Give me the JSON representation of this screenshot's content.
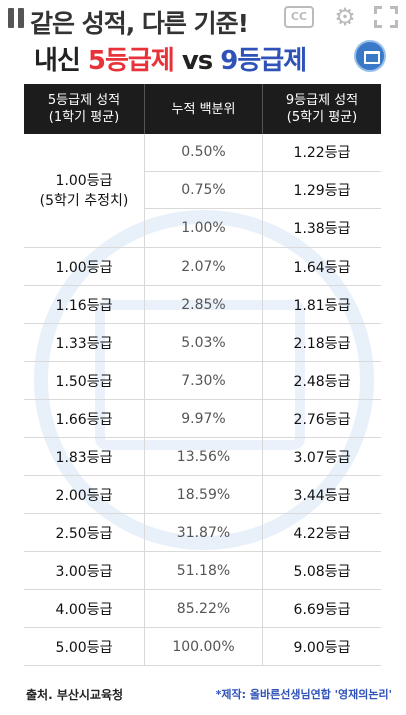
{
  "overlay": {
    "title": "같은 성적, 다른 기준!",
    "cc_label": "CC"
  },
  "headline": {
    "part1": "내신 ",
    "part2": "5등급제",
    "part3": " vs ",
    "part4": "9등급제"
  },
  "table": {
    "headers": [
      "5등급제 성적\n(1학기 평균)",
      "누적 백분위",
      "9등급제 성적\n(5학기 평균)"
    ],
    "group1": {
      "grade5_line1": "1.00등급",
      "grade5_line2": "(5학기 추정치)",
      "rows": [
        {
          "pct": "0.50%",
          "grade9": "1.22등급"
        },
        {
          "pct": "0.75%",
          "grade9": "1.29등급"
        },
        {
          "pct": "1.00%",
          "grade9": "1.38등급"
        }
      ]
    },
    "rows": [
      {
        "grade5": "1.00등급",
        "pct": "2.07%",
        "grade9": "1.64등급"
      },
      {
        "grade5": "1.16등급",
        "pct": "2.85%",
        "grade9": "1.81등급"
      },
      {
        "grade5": "1.33등급",
        "pct": "5.03%",
        "grade9": "2.18등급"
      },
      {
        "grade5": "1.50등급",
        "pct": "7.30%",
        "grade9": "2.48등급"
      },
      {
        "grade5": "1.66등급",
        "pct": "9.97%",
        "grade9": "2.76등급"
      },
      {
        "grade5": "1.83등급",
        "pct": "13.56%",
        "grade9": "3.07등급"
      },
      {
        "grade5": "2.00등급",
        "pct": "18.59%",
        "grade9": "3.44등급"
      },
      {
        "grade5": "2.50등급",
        "pct": "31.87%",
        "grade9": "4.22등급"
      },
      {
        "grade5": "3.00등급",
        "pct": "51.18%",
        "grade9": "5.08등급"
      },
      {
        "grade5": "4.00등급",
        "pct": "85.22%",
        "grade9": "6.69등급"
      },
      {
        "grade5": "5.00등급",
        "pct": "100.00%",
        "grade9": "9.00등급"
      }
    ]
  },
  "footer": {
    "source": "출처. 부산시교육청",
    "credit": "*제작: 올바른선생님연합 '영재의논리'"
  },
  "colors": {
    "red": "#e8323a",
    "blue": "#2f52b8",
    "header_bg": "#1c1c1c"
  },
  "icons": {
    "pause": "pause-icon",
    "cc": "closed-captions-icon",
    "settings": "gear-icon",
    "fullscreen": "fullscreen-icon",
    "logo": "association-logo-icon"
  }
}
